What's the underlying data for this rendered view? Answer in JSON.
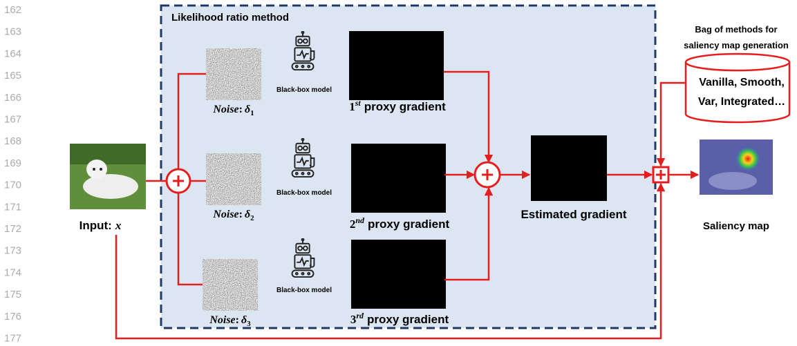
{
  "line_numbers": [
    "162",
    "163",
    "164",
    "165",
    "166",
    "167",
    "168",
    "169",
    "170",
    "171",
    "172",
    "173",
    "174",
    "175",
    "176",
    "177"
  ],
  "panel": {
    "title": "Likelihood ratio method"
  },
  "noises": [
    {
      "name": "Noise",
      "separator": ":",
      "symbol": "δ",
      "index": "1"
    },
    {
      "name": "Noise",
      "separator": ":",
      "symbol": "δ",
      "index": "2"
    },
    {
      "name": "Noise",
      "separator": ":",
      "symbol": "δ",
      "index": "3"
    }
  ],
  "models": [
    "Black-box model",
    "Black-box model",
    "Black-box model"
  ],
  "proxies": [
    {
      "ordinal": "1",
      "suffix": "st",
      "label": "proxy gradient"
    },
    {
      "ordinal": "2",
      "suffix": "nd",
      "label": "proxy gradient"
    },
    {
      "ordinal": "3",
      "suffix": "rd",
      "label": "proxy gradient"
    }
  ],
  "estimated": "Estimated gradient",
  "input": {
    "label": "Input:",
    "symbol": "x"
  },
  "bag": {
    "title": [
      "Bag of methods for",
      "saliency map generation"
    ],
    "methods": [
      "Vanilla, Smooth,",
      "Var, Integrated…"
    ]
  },
  "output": "Saliency map"
}
